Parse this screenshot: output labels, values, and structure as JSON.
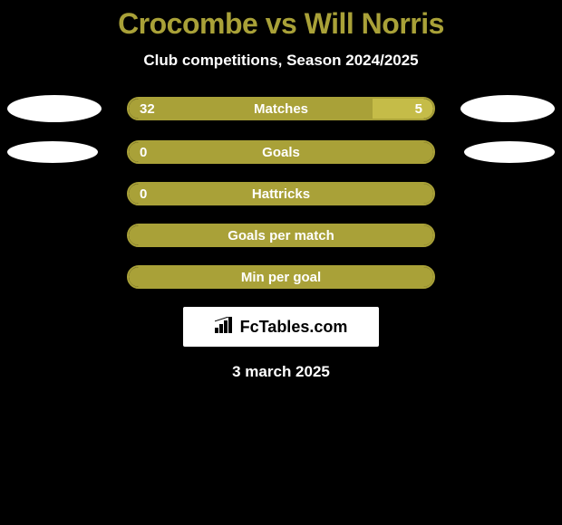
{
  "title": "Crocombe vs Will Norris",
  "subtitle": "Club competitions, Season 2024/2025",
  "colors": {
    "background": "#000000",
    "accent": "#a9a138",
    "bar_left": "#a9a138",
    "bar_right": "#c5bc48",
    "text_primary": "#ffffff",
    "avatar": "#ffffff",
    "watermark_bg": "#ffffff",
    "watermark_text": "#000000"
  },
  "rows": [
    {
      "label": "Matches",
      "left_value": "32",
      "right_value": "5",
      "left_pct": 80,
      "right_pct": 20,
      "show_left_avatar": true,
      "show_right_avatar": true,
      "avatar_size": "large"
    },
    {
      "label": "Goals",
      "left_value": "0",
      "right_value": "",
      "left_pct": 100,
      "right_pct": 0,
      "show_left_avatar": true,
      "show_right_avatar": true,
      "avatar_size": "small"
    },
    {
      "label": "Hattricks",
      "left_value": "0",
      "right_value": "",
      "left_pct": 100,
      "right_pct": 0,
      "show_left_avatar": false,
      "show_right_avatar": false
    },
    {
      "label": "Goals per match",
      "left_value": "",
      "right_value": "",
      "left_pct": 100,
      "right_pct": 0,
      "show_left_avatar": false,
      "show_right_avatar": false
    },
    {
      "label": "Min per goal",
      "left_value": "",
      "right_value": "",
      "left_pct": 100,
      "right_pct": 0,
      "show_left_avatar": false,
      "show_right_avatar": false
    }
  ],
  "watermark": "FcTables.com",
  "date": "3 march 2025"
}
